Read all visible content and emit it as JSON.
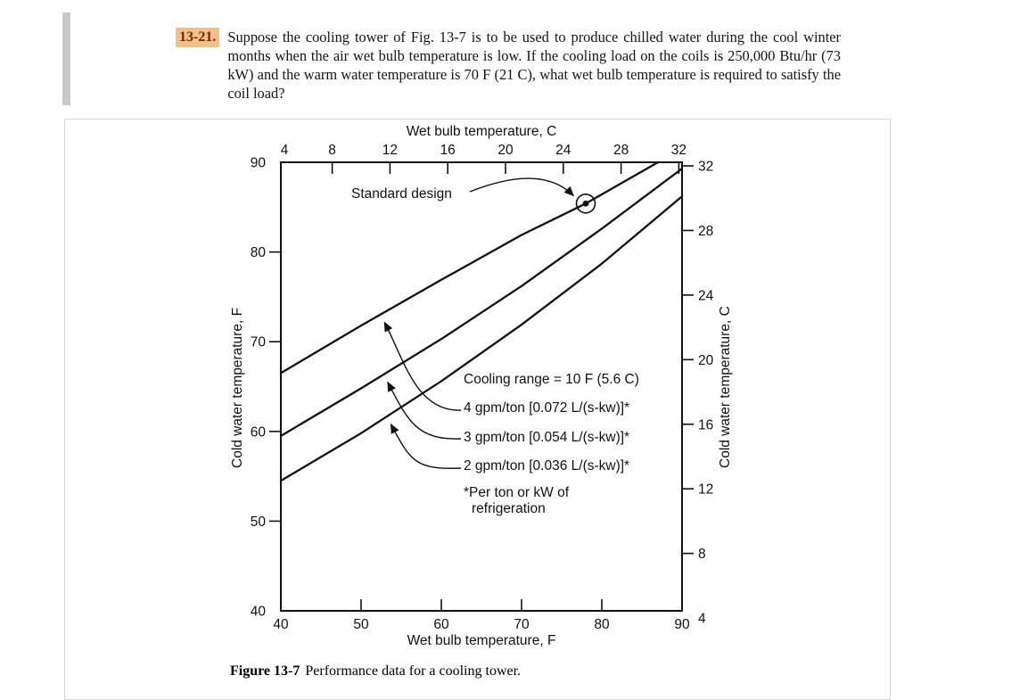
{
  "problem": {
    "number": "13-21.",
    "text": "Suppose the cooling tower of Fig. 13-7 is to be used to produce chilled water during the cool winter months when the air wet bulb temperature is low. If the cooling load on the coils is 250,000 Btu/hr (73 kW) and the warm water temperature is 70 F (21 C), what wet bulb temperature is required to satisfy the coil load?"
  },
  "figure": {
    "caption_label": "Figure 13-7",
    "caption_text": "Performance data for a cooling tower."
  },
  "chart_data": {
    "type": "line",
    "axes": {
      "top": {
        "label": "Wet bulb temperature, C",
        "ticks": [
          4,
          8,
          12,
          16,
          20,
          24,
          28,
          32
        ]
      },
      "bottom": {
        "label": "Wet bulb temperature, F",
        "ticks": [
          40,
          50,
          60,
          70,
          80,
          90
        ],
        "range": [
          40,
          90
        ]
      },
      "left": {
        "label": "Cold water temperature, F",
        "ticks": [
          40,
          50,
          60,
          70,
          80,
          90
        ],
        "range": [
          40,
          90
        ]
      },
      "right": {
        "label": "Cold water temperature, C",
        "ticks": [
          4,
          8,
          12,
          16,
          20,
          24,
          28,
          32
        ]
      }
    },
    "grid": false,
    "series": [
      {
        "name": "4 gpm/ton [0.072 L/(s-kw)]*",
        "x": [
          40,
          50,
          60,
          70,
          78,
          87
        ],
        "y": [
          66.5,
          71.8,
          76.9,
          81.9,
          85.4,
          90
        ]
      },
      {
        "name": "3 gpm/ton [0.054 L/(s-kw)]*",
        "x": [
          40,
          50,
          60,
          70,
          80,
          90
        ],
        "y": [
          59.5,
          64.8,
          70.3,
          76.2,
          82.6,
          89.3
        ]
      },
      {
        "name": "2 gpm/ton [0.036 L/(s-kw)]*",
        "x": [
          40,
          50,
          60,
          70,
          80,
          90
        ],
        "y": [
          54.5,
          59.8,
          65.6,
          71.9,
          78.7,
          86.2
        ]
      }
    ],
    "annotations": {
      "standard_design_label": "Standard design",
      "standard_design_point": {
        "wet_bulb_f": 78,
        "cold_water_f": 85.4
      },
      "cooling_range_label": "Cooling range = 10 F (5.6 C)",
      "footnote": "*Per ton or kW of refrigeration"
    },
    "colors": {
      "line": "#111111",
      "axis": "#111111"
    }
  },
  "theme": {
    "highlight_bg": "#f2c08a",
    "highlight_text": "#7a2500",
    "accent_bar": "#c9c9c9",
    "figure_border": "#d8d8d8"
  }
}
